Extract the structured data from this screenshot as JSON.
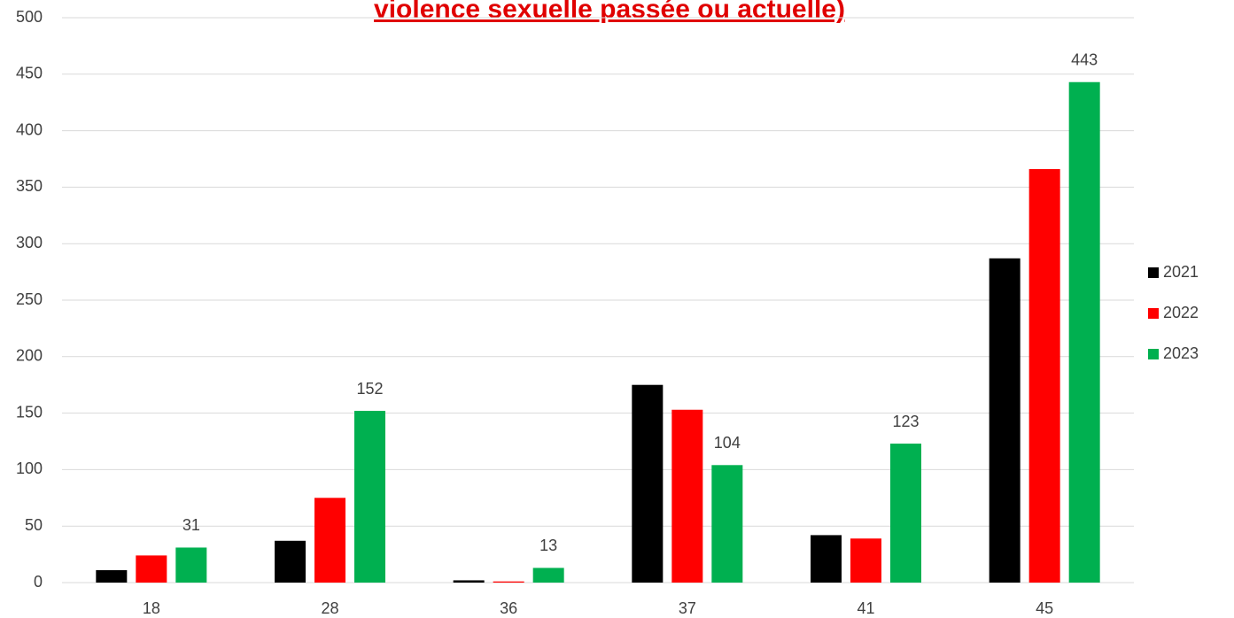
{
  "chart_data": {
    "type": "bar",
    "title": "violence sexuelle passée ou actuelle)",
    "title_color": "#e00000",
    "categories": [
      "18",
      "28",
      "36",
      "37",
      "41",
      "45"
    ],
    "series": [
      {
        "name": "2021",
        "color": "#000000",
        "values": [
          11,
          37,
          2,
          175,
          42,
          287
        ],
        "show_labels": false
      },
      {
        "name": "2022",
        "color": "#ff0000",
        "values": [
          24,
          75,
          1,
          153,
          39,
          366
        ],
        "show_labels": false
      },
      {
        "name": "2023",
        "color": "#00b050",
        "values": [
          31,
          152,
          13,
          104,
          123,
          443
        ],
        "show_labels": true
      }
    ],
    "ylim": [
      0,
      500
    ],
    "yticks": [
      0,
      50,
      100,
      150,
      200,
      250,
      300,
      350,
      400,
      450,
      500
    ],
    "grid": true,
    "legend": "right"
  }
}
